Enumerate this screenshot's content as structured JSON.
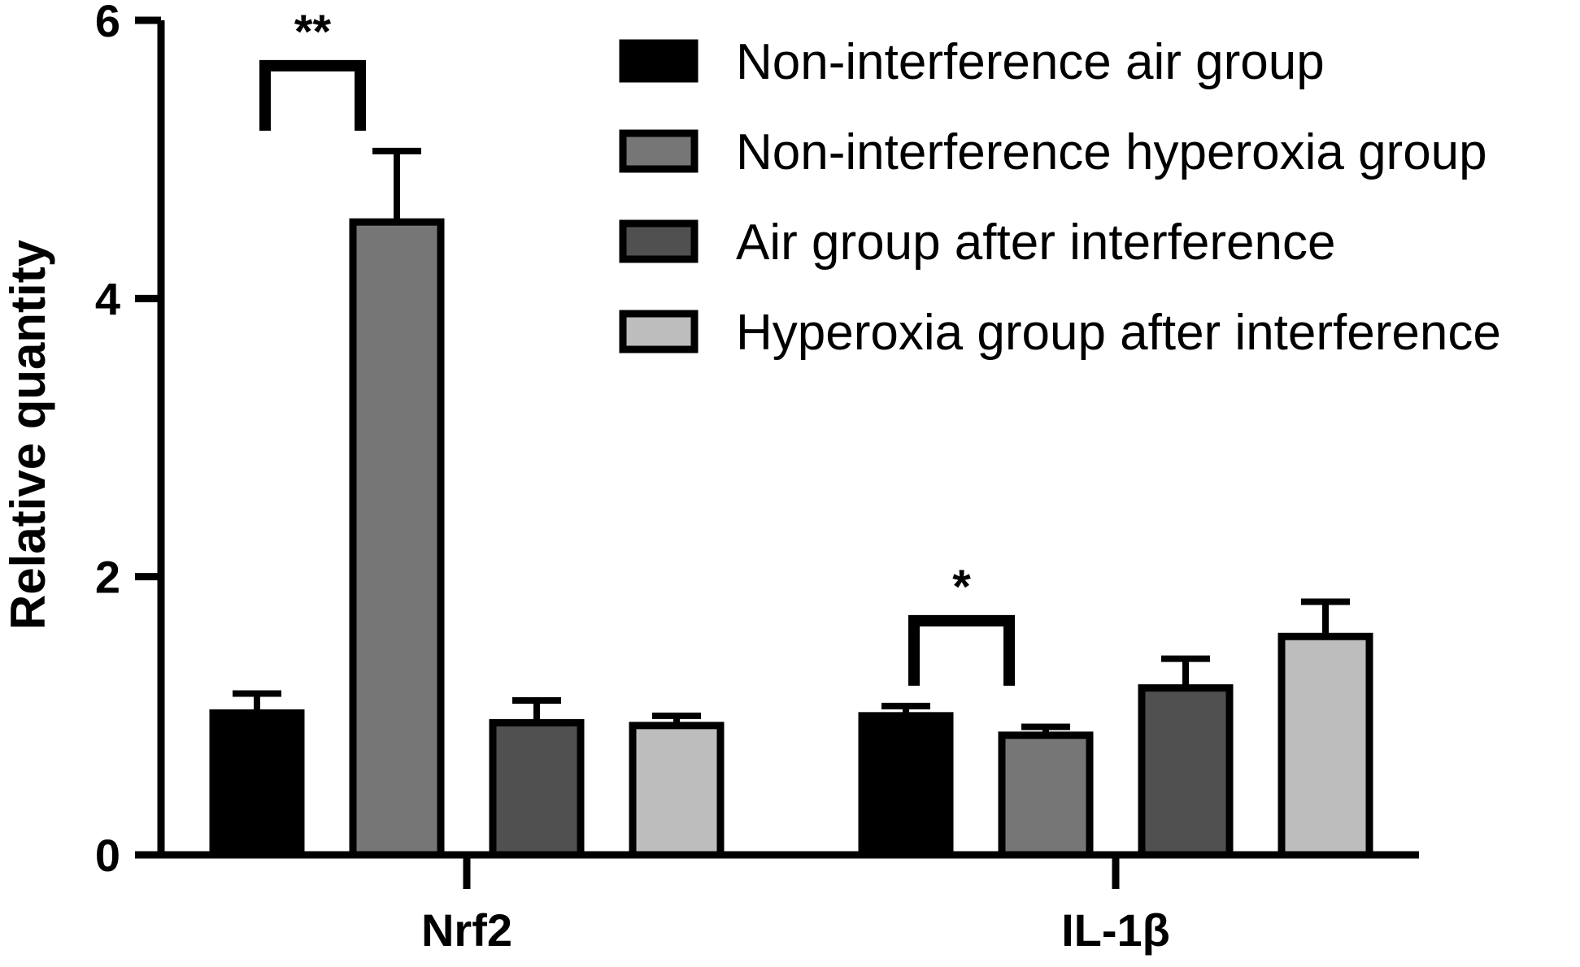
{
  "chart_data": {
    "type": "bar",
    "categories": [
      "Nrf2",
      "IL-1β"
    ],
    "ylabel": "Relative quantity",
    "xlabel": "",
    "ylim": [
      0,
      6
    ],
    "yticks": [
      0,
      2,
      4,
      6
    ],
    "grid": false,
    "legend_position": "top-right",
    "series": [
      {
        "name": "Non-interference air group",
        "color": "#000000",
        "values": [
          1.02,
          1.0
        ],
        "errors": [
          0.14,
          0.07
        ]
      },
      {
        "name": "Non-interference hyperoxia group",
        "color": "#767676",
        "values": [
          4.55,
          0.86
        ],
        "errors": [
          0.51,
          0.06
        ]
      },
      {
        "name": "Air group after interference",
        "color": "#505050",
        "values": [
          0.95,
          1.2
        ],
        "errors": [
          0.16,
          0.21
        ]
      },
      {
        "name": "Hyperoxia group after interference",
        "color": "#bdbdbd",
        "values": [
          0.93,
          1.57
        ],
        "errors": [
          0.07,
          0.25
        ]
      }
    ],
    "annotations": [
      {
        "text": "**",
        "category": 0,
        "from_series": 0,
        "to_series": 1
      },
      {
        "text": "*",
        "category": 1,
        "from_series": 0,
        "to_series": 1
      }
    ]
  }
}
